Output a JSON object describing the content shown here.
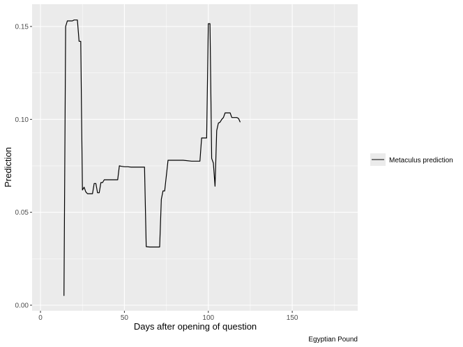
{
  "chart_data": {
    "type": "line",
    "title": "",
    "xlabel": "Days after opening of question",
    "ylabel": "Prediction",
    "caption": "Egyptian Pound",
    "xlim": [
      -5,
      189
    ],
    "ylim": [
      -0.003,
      0.162
    ],
    "x_ticks": [
      0,
      50,
      100,
      150
    ],
    "y_ticks": [
      0.0,
      0.05,
      0.1,
      0.15
    ],
    "x_tick_labels": [
      "0",
      "50",
      "100",
      "150"
    ],
    "y_tick_labels": [
      "0.00",
      "0.05",
      "0.10",
      "0.15"
    ],
    "grid": true,
    "legend_position": "right",
    "colors": {
      "panel": "#ebebeb",
      "grid": "#ffffff",
      "line": "#000000"
    },
    "series": [
      {
        "name": "Metaculus prediction",
        "x": [
          14,
          15,
          16,
          17,
          19,
          20,
          21,
          22,
          23,
          24,
          25,
          26,
          27,
          28,
          30,
          31,
          32,
          33,
          34,
          35,
          36,
          37,
          38,
          40,
          42,
          44,
          46,
          47,
          48,
          50,
          52,
          54,
          56,
          58,
          60,
          62,
          63,
          65,
          70,
          71,
          72,
          73,
          74,
          76,
          78,
          80,
          82,
          85,
          90,
          95,
          96,
          97,
          99,
          100,
          101,
          102,
          103,
          104,
          105,
          106,
          107,
          108,
          109,
          110,
          111,
          113,
          114,
          115,
          116,
          117,
          118,
          119
        ],
        "y": [
          0.005,
          0.15,
          0.153,
          0.153,
          0.153,
          0.1535,
          0.1535,
          0.1535,
          0.142,
          0.142,
          0.062,
          0.0635,
          0.061,
          0.06,
          0.06,
          0.06,
          0.0655,
          0.0655,
          0.0605,
          0.0605,
          0.066,
          0.066,
          0.0675,
          0.0675,
          0.0675,
          0.0675,
          0.0675,
          0.075,
          0.0748,
          0.0745,
          0.0745,
          0.0743,
          0.0743,
          0.0743,
          0.0743,
          0.0743,
          0.0315,
          0.0313,
          0.0313,
          0.0313,
          0.057,
          0.0615,
          0.0615,
          0.078,
          0.078,
          0.078,
          0.078,
          0.078,
          0.0775,
          0.0775,
          0.09,
          0.09,
          0.09,
          0.1515,
          0.1515,
          0.079,
          0.0765,
          0.064,
          0.094,
          0.098,
          0.0985,
          0.1,
          0.101,
          0.1035,
          0.1035,
          0.1035,
          0.101,
          0.101,
          0.101,
          0.101,
          0.1005,
          0.0985
        ]
      }
    ]
  }
}
